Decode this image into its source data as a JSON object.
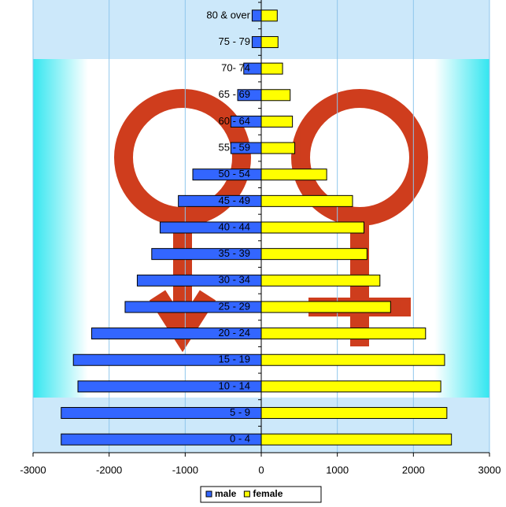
{
  "chart_data": {
    "type": "pyramid",
    "categories": [
      "80 & over",
      "75 - 79",
      "70- 74",
      "65 - 69",
      "60 - 64",
      "55 - 59",
      "50 - 54",
      "45 - 49",
      "40 - 44",
      "35 - 39",
      "30 - 34",
      "25 - 29",
      "20 - 24",
      "15 - 19",
      "10 - 14",
      "5 - 9",
      "0 - 4"
    ],
    "series": [
      {
        "name": "male",
        "color": "#3366ff",
        "values": [
          -120,
          -120,
          -230,
          -310,
          -400,
          -400,
          -900,
          -1090,
          -1330,
          -1440,
          -1630,
          -1790,
          -2230,
          -2470,
          -2410,
          -2630,
          -2630
        ]
      },
      {
        "name": "female",
        "color": "#ffff00",
        "values": [
          210,
          220,
          280,
          380,
          410,
          440,
          860,
          1200,
          1350,
          1390,
          1560,
          1700,
          2160,
          2410,
          2360,
          2440,
          2500
        ]
      }
    ],
    "xlim": [
      -3000,
      3000
    ],
    "xticks": [
      -3000,
      -2000,
      -1000,
      0,
      1000,
      2000,
      3000
    ],
    "grid": true
  }
}
